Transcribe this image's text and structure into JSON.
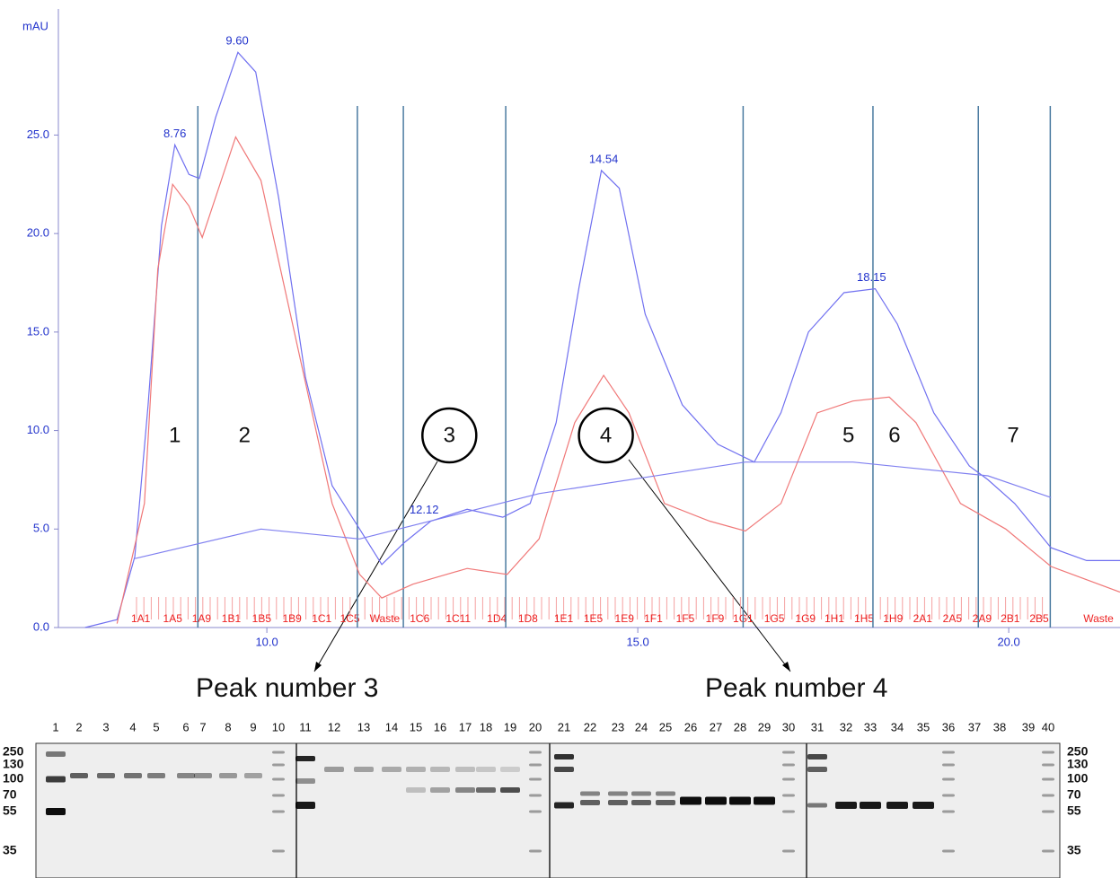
{
  "chart_data": {
    "type": "line",
    "ylabel": "mAU",
    "xlim": [
      7.19,
      21.5
    ],
    "ylim": [
      0,
      31.4
    ],
    "xticks": [
      {
        "value": 10,
        "label": "10.0"
      },
      {
        "value": 15,
        "label": "15.0"
      },
      {
        "value": 20,
        "label": "20.0"
      }
    ],
    "yticks": [
      {
        "value": 0,
        "label": "0.0"
      },
      {
        "value": 5,
        "label": "5.0"
      },
      {
        "value": 10,
        "label": "10.0"
      },
      {
        "value": 15,
        "label": "15.0"
      },
      {
        "value": 20,
        "label": "20.0"
      },
      {
        "value": 25,
        "label": "25.0"
      }
    ],
    "series": [
      {
        "color": "#7070f0",
        "x": [
          7.55,
          7.98,
          8.22,
          8.4,
          8.58,
          8.76,
          8.95,
          9.09,
          9.31,
          9.61,
          9.85,
          10.16,
          10.52,
          10.88,
          11.25,
          11.55,
          11.85,
          12.21,
          12.7,
          13.18,
          13.55,
          13.9,
          14.21,
          14.51,
          14.75,
          15.1,
          15.6,
          16.08,
          16.57,
          16.93,
          17.3,
          17.78,
          18.2,
          18.5,
          18.99,
          19.47,
          19.72,
          20.08,
          20.57,
          21.05,
          21.5
        ],
        "values": [
          0,
          0.4,
          3.6,
          11.3,
          20.4,
          24.5,
          23,
          22.8,
          25.9,
          29.2,
          28.2,
          21.8,
          12.7,
          7.2,
          5,
          3.2,
          4.3,
          5.4,
          6,
          5.6,
          6.3,
          10.4,
          17.3,
          23.2,
          22.3,
          15.9,
          11.3,
          9.3,
          8.4,
          10.9,
          15,
          17,
          17.2,
          15.4,
          10.9,
          8.2,
          7.5,
          6.3,
          4.05,
          3.4,
          3.4
        ]
      },
      {
        "color": "#f07878",
        "x": [
          7.98,
          8.35,
          8.53,
          8.73,
          8.95,
          9.13,
          9.58,
          9.92,
          10.4,
          10.88,
          11.25,
          11.55,
          11.97,
          12.7,
          13.24,
          13.67,
          14.15,
          14.54,
          14.88,
          15.36,
          15.97,
          16.45,
          16.93,
          17.42,
          17.9,
          18.39,
          18.75,
          19.35,
          19.96,
          20.57,
          21.5
        ],
        "values": [
          0.2,
          6.3,
          18.2,
          22.5,
          21.4,
          19.8,
          24.9,
          22.7,
          14.5,
          6.3,
          2.7,
          1.5,
          2.2,
          3,
          2.7,
          4.5,
          10.4,
          12.8,
          10.9,
          6.3,
          5.4,
          4.9,
          6.3,
          10.9,
          11.5,
          11.7,
          10.4,
          6.3,
          5,
          3.1,
          1.8
        ]
      },
      {
        "color": "#8080f0",
        "x": [
          8.22,
          9.92,
          11.25,
          13.67,
          16.45,
          17.9,
          19.72,
          20.57
        ],
        "values": [
          3.5,
          5,
          4.5,
          6.8,
          8.4,
          8.4,
          7.7,
          6.6
        ]
      }
    ],
    "peaks": [
      {
        "value": 8.76,
        "label": "8.76",
        "height": 24.5
      },
      {
        "value": 9.6,
        "label": "9.60",
        "height": 29.2
      },
      {
        "value": 12.12,
        "label": "12.12",
        "height": 5.4
      },
      {
        "value": 14.54,
        "label": "14.54",
        "height": 23.2
      },
      {
        "value": 18.15,
        "label": "18.15",
        "height": 17.2
      }
    ],
    "cuts": [
      9.07,
      11.22,
      11.84,
      13.22,
      16.42,
      18.17,
      19.59,
      20.56
    ],
    "fractions": {
      "labels": [
        "1A1",
        "1A5",
        "1A9",
        "1B1",
        "1B5",
        "1B9",
        "1C1",
        "1C5",
        "Waste",
        "1C6",
        "1C11",
        "1D4",
        "1D8",
        "1E1",
        "1E5",
        "1E9",
        "1F1",
        "1F5",
        "1F9",
        "1G1",
        "1G5",
        "1G9",
        "1H1",
        "1H5",
        "1H9",
        "2A1",
        "2A5",
        "2A9",
        "2B1",
        "2B5",
        "Waste"
      ],
      "x": [
        8.3,
        8.73,
        9.12,
        9.52,
        9.93,
        10.34,
        10.74,
        11.12,
        11.59,
        12.06,
        12.58,
        13.1,
        13.52,
        14.0,
        14.4,
        14.82,
        15.21,
        15.64,
        16.04,
        16.42,
        16.84,
        17.26,
        17.65,
        18.05,
        18.44,
        18.84,
        19.24,
        19.64,
        20.02,
        20.41,
        21.21
      ]
    },
    "regions": [
      {
        "label": "1",
        "x": 8.76,
        "circled": false
      },
      {
        "label": "2",
        "x": 9.7,
        "circled": false
      },
      {
        "label": "3",
        "x": 12.46,
        "circled": true
      },
      {
        "label": "4",
        "x": 14.57,
        "circled": true
      },
      {
        "label": "5",
        "x": 17.84,
        "circled": false
      },
      {
        "label": "6",
        "x": 18.46,
        "circled": false
      },
      {
        "label": "7",
        "x": 20.06,
        "circled": false
      }
    ],
    "annotations": [
      "Peak number 3",
      "Peak number 4"
    ]
  },
  "gel": {
    "lanes": [
      "1",
      "2",
      "3",
      "4",
      "5",
      "6",
      "7",
      "8",
      "9",
      "10",
      "11",
      "12",
      "13",
      "14",
      "15",
      "16",
      "17",
      "18",
      "19",
      "20",
      "21",
      "22",
      "23",
      "24",
      "25",
      "26",
      "27",
      "28",
      "29",
      "30",
      "31",
      "32",
      "33",
      "34",
      "35",
      "36",
      "37",
      "38",
      "39",
      "40"
    ],
    "markers_left": [
      "250",
      "130",
      "100",
      "70",
      "55",
      "35"
    ],
    "markers_right": [
      "250",
      "130",
      "100",
      "70",
      "55",
      "35"
    ]
  }
}
